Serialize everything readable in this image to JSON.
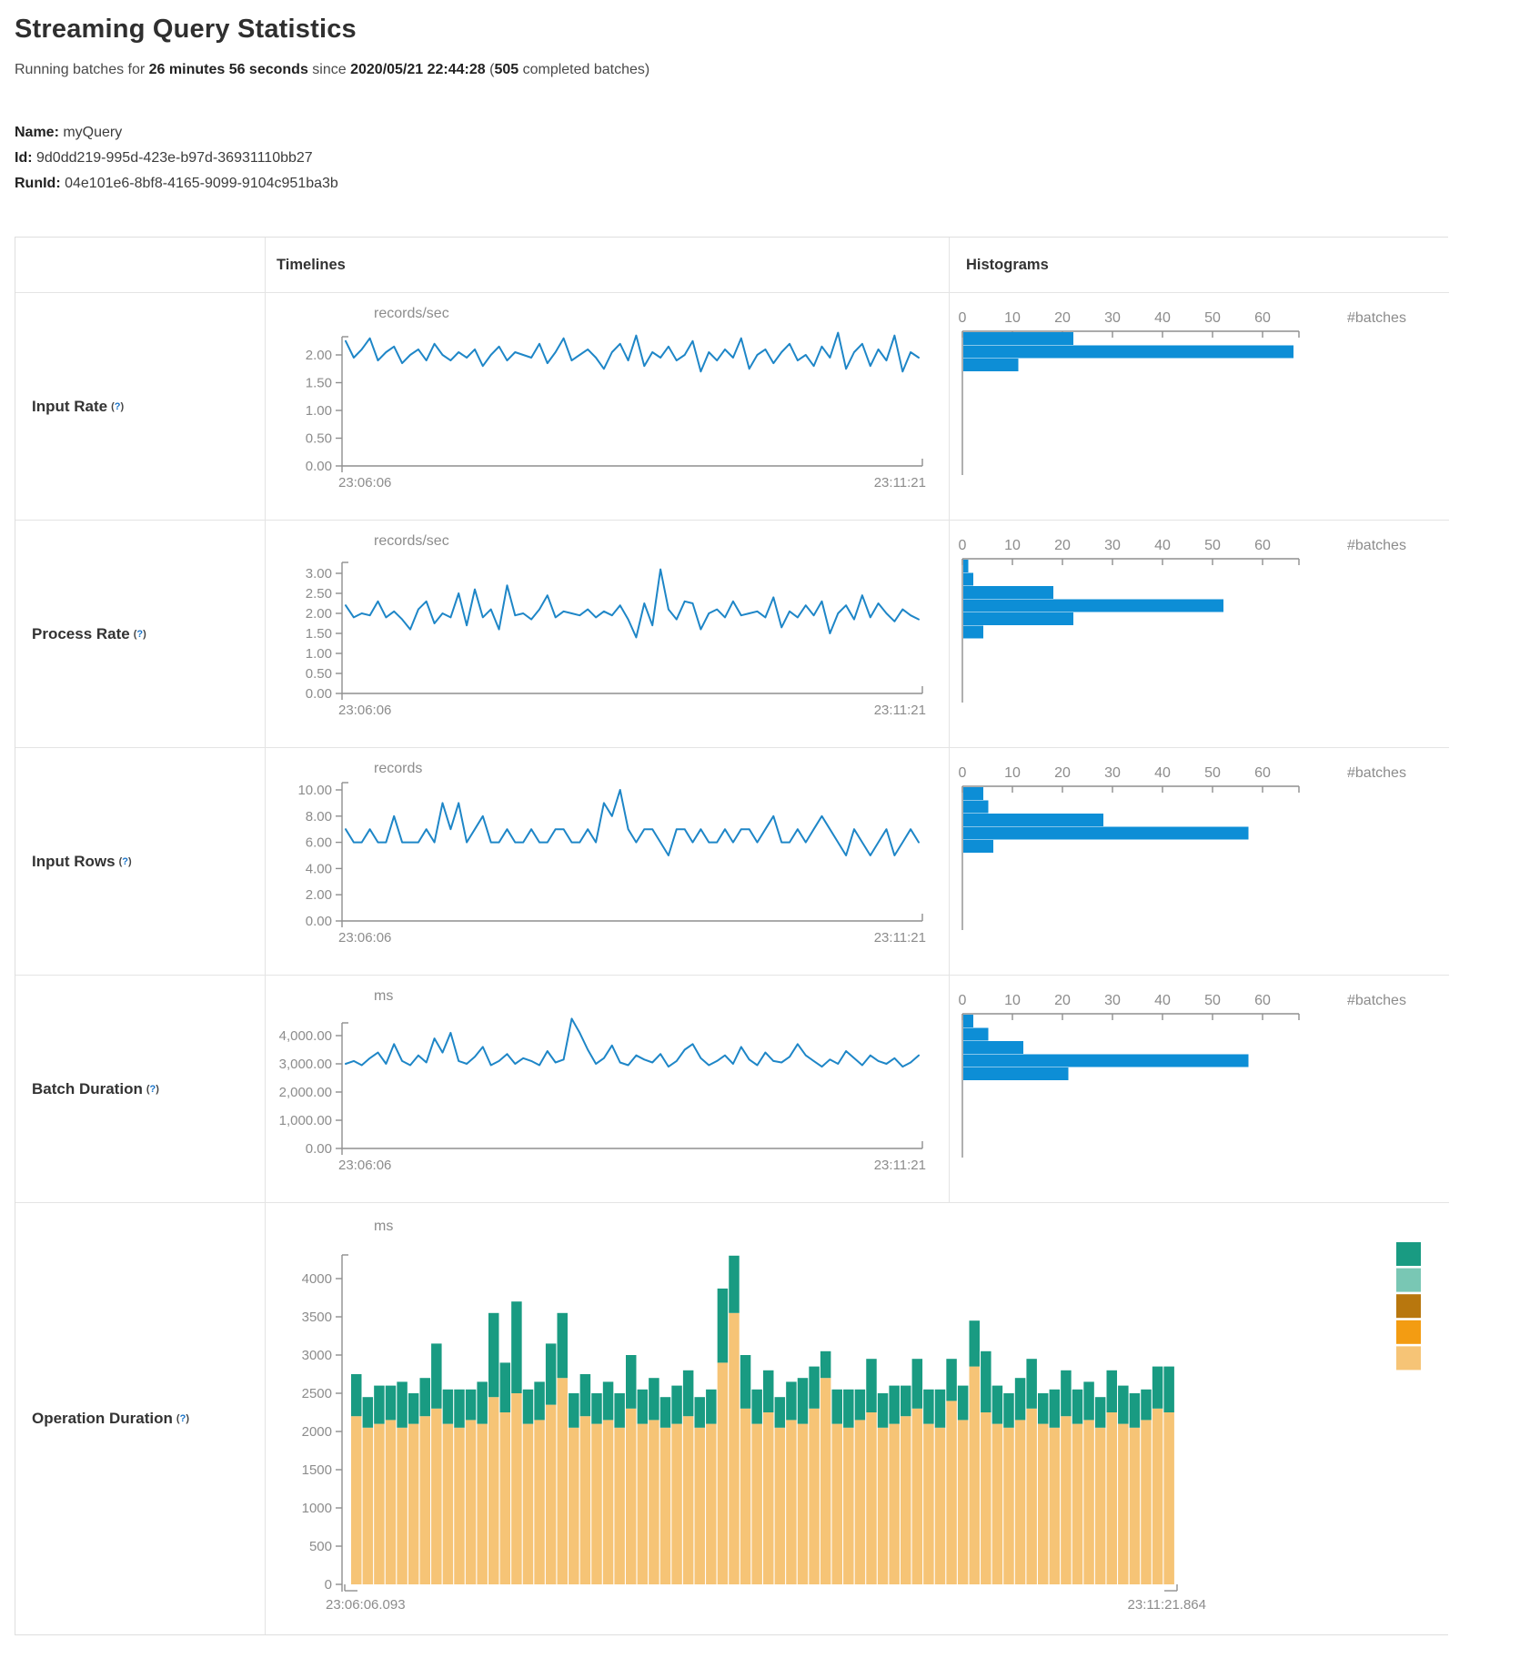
{
  "page": {
    "title": "Streaming Query Statistics",
    "subtitle": {
      "prefix": "Running batches for ",
      "duration": "26 minutes 56 seconds",
      "mid": " since ",
      "start_time": "2020/05/21 22:44:28",
      "paren": " (",
      "batches": "505",
      "suffix": " completed batches)"
    },
    "name_label": "Name:",
    "name_value": " myQuery",
    "id_label": "Id:",
    "id_value": " 9d0dd219-995d-423e-b97d-36931110bb27",
    "runid_label": "RunId:",
    "runid_value": " 04e101e6-8bf8-4165-9099-9104c951ba3b"
  },
  "table": {
    "headers": {
      "timelines": "Timelines",
      "histograms": "Histograms"
    },
    "help_open": "(",
    "help_q": "?",
    "help_close": ")",
    "rows": [
      {
        "label": "Input Rate"
      },
      {
        "label": "Process Rate"
      },
      {
        "label": "Input Rows"
      },
      {
        "label": "Batch Duration"
      },
      {
        "label": "Operation Duration"
      }
    ]
  },
  "colors": {
    "line_blue": "#1e86c7",
    "hist_blue": "#0d8ed6",
    "axis_gray": "#8f8f8f",
    "tick_text": "#8c8c8c",
    "stack_tan": "#f6c476",
    "stack_teal": "#199b82"
  },
  "chart_data": {
    "timelines": [
      {
        "row": "input-rate",
        "type": "line",
        "unit": "records/sec",
        "x_start": "23:06:06",
        "x_end": "23:11:21",
        "yticks": [
          "2.00",
          "1.50",
          "1.00",
          "0.50",
          "0.00"
        ],
        "ytick_top_value": 2.0,
        "values": [
          2.25,
          1.95,
          2.1,
          2.3,
          1.9,
          2.05,
          2.15,
          1.85,
          2.0,
          2.1,
          1.9,
          2.2,
          2.0,
          1.9,
          2.05,
          1.95,
          2.1,
          1.8,
          2.0,
          2.15,
          1.9,
          2.05,
          2.0,
          1.95,
          2.2,
          1.85,
          2.05,
          2.3,
          1.9,
          2.0,
          2.1,
          1.95,
          1.75,
          2.05,
          2.2,
          1.9,
          2.35,
          1.8,
          2.05,
          1.95,
          2.15,
          1.9,
          2.0,
          2.25,
          1.7,
          2.05,
          1.9,
          2.1,
          1.95,
          2.3,
          1.75,
          2.0,
          2.1,
          1.85,
          2.05,
          2.2,
          1.9,
          2.0,
          1.8,
          2.15,
          1.95,
          2.4,
          1.75,
          2.05,
          2.2,
          1.8,
          2.1,
          1.9,
          2.35,
          1.7,
          2.05,
          1.95
        ]
      },
      {
        "row": "process-rate",
        "type": "line",
        "unit": "records/sec",
        "x_start": "23:06:06",
        "x_end": "23:11:21",
        "yticks": [
          "3.00",
          "2.50",
          "2.00",
          "1.50",
          "1.00",
          "0.50",
          "0.00"
        ],
        "ytick_top_value": 3.0,
        "values": [
          2.2,
          1.9,
          2.0,
          1.95,
          2.3,
          1.9,
          2.05,
          1.85,
          1.6,
          2.1,
          2.3,
          1.75,
          2.0,
          1.9,
          2.5,
          1.7,
          2.6,
          1.9,
          2.1,
          1.6,
          2.7,
          1.95,
          2.0,
          1.85,
          2.1,
          2.45,
          1.9,
          2.05,
          2.0,
          1.95,
          2.1,
          1.9,
          2.05,
          1.95,
          2.2,
          1.85,
          1.4,
          2.25,
          1.7,
          3.1,
          2.1,
          1.85,
          2.3,
          2.25,
          1.6,
          2.0,
          2.1,
          1.9,
          2.3,
          1.95,
          2.0,
          2.05,
          1.9,
          2.4,
          1.65,
          2.05,
          1.9,
          2.2,
          1.95,
          2.3,
          1.5,
          2.0,
          2.2,
          1.85,
          2.45,
          1.9,
          2.25,
          2.0,
          1.8,
          2.1,
          1.95,
          1.85
        ]
      },
      {
        "row": "input-rows",
        "type": "line",
        "unit": "records",
        "x_start": "23:06:06",
        "x_end": "23:11:21",
        "yticks": [
          "10.00",
          "8.00",
          "6.00",
          "4.00",
          "2.00",
          "0.00"
        ],
        "ytick_top_value": 10,
        "values": [
          7,
          6,
          6,
          7,
          6,
          6,
          8,
          6,
          6,
          6,
          7,
          6,
          9,
          7,
          9,
          6,
          7,
          8,
          6,
          6,
          7,
          6,
          6,
          7,
          6,
          6,
          7,
          7,
          6,
          6,
          7,
          6,
          9,
          8,
          10,
          7,
          6,
          7,
          7,
          6,
          5,
          7,
          7,
          6,
          7,
          6,
          6,
          7,
          6,
          7,
          7,
          6,
          7,
          8,
          6,
          6,
          7,
          6,
          7,
          8,
          7,
          6,
          5,
          7,
          6,
          5,
          6,
          7,
          5,
          6,
          7,
          6
        ]
      },
      {
        "row": "batch-duration",
        "type": "line",
        "unit": "ms",
        "x_start": "23:06:06",
        "x_end": "23:11:21",
        "yticks": [
          "4,000.00",
          "3,000.00",
          "2,000.00",
          "1,000.00",
          "0.00"
        ],
        "ytick_top_value": 4000,
        "values": [
          3000,
          3100,
          2950,
          3200,
          3400,
          3000,
          3700,
          3100,
          2950,
          3300,
          3050,
          3900,
          3400,
          4100,
          3100,
          3000,
          3250,
          3600,
          2950,
          3100,
          3350,
          3000,
          3200,
          3100,
          2950,
          3450,
          3050,
          3150,
          4600,
          4100,
          3500,
          3000,
          3200,
          3650,
          3050,
          2950,
          3300,
          3150,
          3050,
          3350,
          2900,
          3100,
          3500,
          3700,
          3200,
          2950,
          3100,
          3300,
          3000,
          3600,
          3150,
          2950,
          3400,
          3100,
          3050,
          3250,
          3700,
          3300,
          3100,
          2900,
          3150,
          3000,
          3450,
          3200,
          2950,
          3300,
          3100,
          3000,
          3200,
          2900,
          3050,
          3300
        ]
      }
    ],
    "histograms": [
      {
        "row": "input-rate",
        "type": "bar",
        "xlabel": "#batches",
        "xticks": [
          "0",
          "10",
          "20",
          "30",
          "40",
          "50",
          "60"
        ],
        "values": [
          22,
          66,
          11
        ]
      },
      {
        "row": "process-rate",
        "type": "bar",
        "xlabel": "#batches",
        "xticks": [
          "0",
          "10",
          "20",
          "30",
          "40",
          "50",
          "60"
        ],
        "values": [
          1,
          2,
          18,
          52,
          22,
          4
        ]
      },
      {
        "row": "input-rows",
        "type": "bar",
        "xlabel": "#batches",
        "xticks": [
          "0",
          "10",
          "20",
          "30",
          "40",
          "50",
          "60"
        ],
        "values": [
          4,
          5,
          28,
          57,
          6
        ]
      },
      {
        "row": "batch-duration",
        "type": "bar",
        "xlabel": "#batches",
        "xticks": [
          "0",
          "10",
          "20",
          "30",
          "40",
          "50",
          "60"
        ],
        "values": [
          2,
          5,
          12,
          57,
          21
        ]
      }
    ],
    "operation_duration": {
      "type": "stacked-bar",
      "unit": "ms",
      "x_start": "23:06:06.093",
      "x_end": "23:11:21.864",
      "yticks": [
        "4000",
        "3500",
        "3000",
        "2500",
        "2000",
        "1500",
        "1000",
        "500",
        "0"
      ],
      "ytick_top_value": 4000,
      "legend_colors": [
        "#199b82",
        "#79c7b4",
        "#b8770e",
        "#f39c12",
        "#f6c476"
      ],
      "series": [
        {
          "name": "bottom-tan",
          "color": "#f6c476",
          "values": [
            2200,
            2050,
            2100,
            2150,
            2050,
            2100,
            2200,
            2300,
            2100,
            2050,
            2150,
            2100,
            2450,
            2250,
            2500,
            2100,
            2150,
            2350,
            2700,
            2050,
            2200,
            2100,
            2150,
            2050,
            2300,
            2100,
            2150,
            2050,
            2100,
            2200,
            2050,
            2100,
            2900,
            3550,
            2300,
            2100,
            2250,
            2050,
            2150,
            2100,
            2300,
            2700,
            2100,
            2050,
            2150,
            2250,
            2050,
            2100,
            2200,
            2300,
            2100,
            2050,
            2400,
            2150,
            2850,
            2250,
            2100,
            2050,
            2150,
            2300,
            2100,
            2050,
            2200,
            2100,
            2150,
            2050,
            2250,
            2100,
            2050,
            2150,
            2300,
            2250
          ]
        },
        {
          "name": "top-teal",
          "color": "#199b82",
          "values": [
            550,
            400,
            500,
            450,
            600,
            400,
            500,
            850,
            450,
            500,
            400,
            550,
            1100,
            650,
            1200,
            450,
            500,
            800,
            850,
            450,
            550,
            400,
            500,
            450,
            700,
            450,
            550,
            400,
            500,
            600,
            400,
            450,
            970,
            750,
            700,
            450,
            550,
            400,
            500,
            600,
            550,
            350,
            450,
            500,
            400,
            700,
            450,
            500,
            400,
            650,
            450,
            500,
            550,
            450,
            600,
            800,
            500,
            450,
            550,
            650,
            400,
            500,
            600,
            450,
            500,
            400,
            550,
            500,
            450,
            400,
            550,
            600
          ]
        }
      ]
    }
  }
}
